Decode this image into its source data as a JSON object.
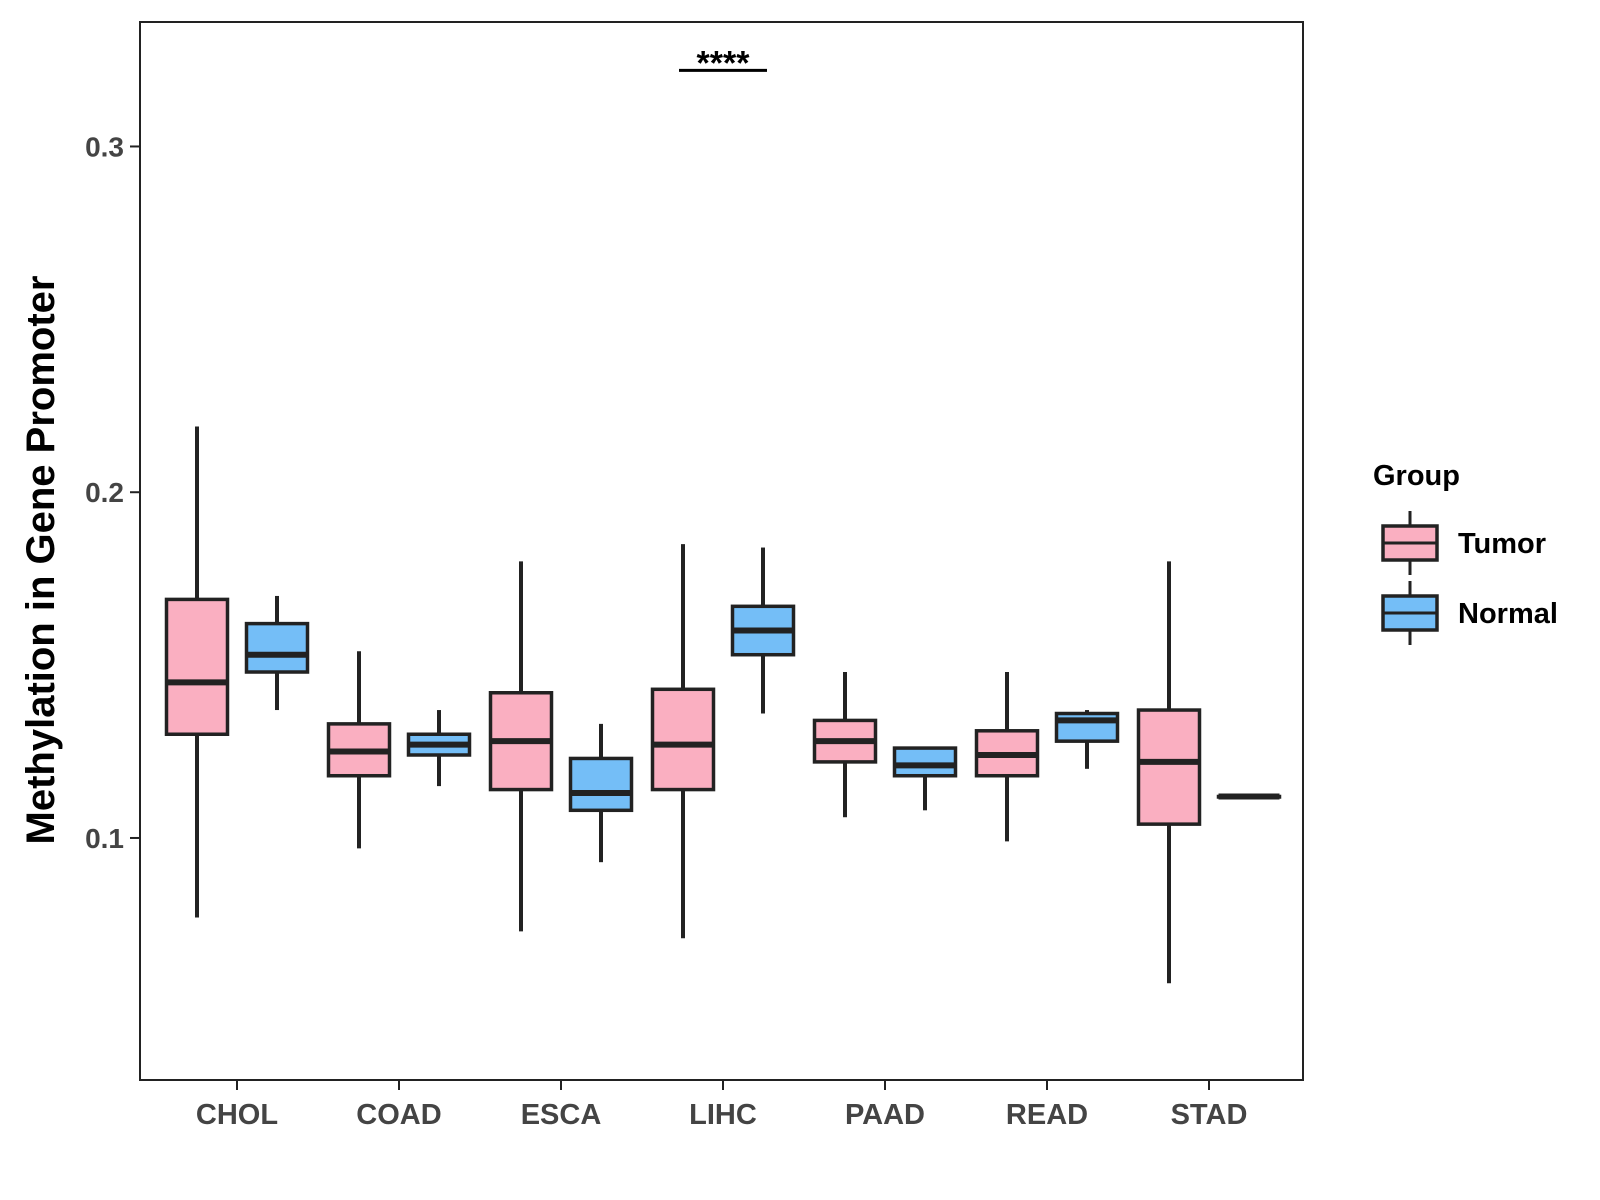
{
  "chart_data": {
    "type": "box",
    "title": "",
    "xlabel": "",
    "ylabel": "Methylation in Gene Promoter",
    "ylim": [
      0.03,
      0.336
    ],
    "yticks": [
      0.1,
      0.2,
      0.3
    ],
    "ytick_labels": [
      "0.1",
      "0.2",
      "0.3"
    ],
    "grid": false,
    "categories": [
      "CHOL",
      "COAD",
      "ESCA",
      "LIHC",
      "PAAD",
      "READ",
      "STAD"
    ],
    "legend": {
      "title": "Group",
      "position": "right",
      "entries": [
        "Tumor",
        "Normal"
      ]
    },
    "colors": {
      "Tumor": "#FAAFC1",
      "Normal": "#74BEF7",
      "edge": "#222222"
    },
    "series": [
      {
        "name": "Tumor",
        "boxes": [
          {
            "category": "CHOL",
            "min": 0.077,
            "q1": 0.13,
            "median": 0.145,
            "q3": 0.169,
            "max": 0.219
          },
          {
            "category": "COAD",
            "min": 0.097,
            "q1": 0.118,
            "median": 0.125,
            "q3": 0.133,
            "max": 0.154
          },
          {
            "category": "ESCA",
            "min": 0.073,
            "q1": 0.114,
            "median": 0.128,
            "q3": 0.142,
            "max": 0.18
          },
          {
            "category": "LIHC",
            "min": 0.071,
            "q1": 0.114,
            "median": 0.127,
            "q3": 0.143,
            "max": 0.185
          },
          {
            "category": "PAAD",
            "min": 0.106,
            "q1": 0.122,
            "median": 0.128,
            "q3": 0.134,
            "max": 0.148
          },
          {
            "category": "READ",
            "min": 0.099,
            "q1": 0.118,
            "median": 0.124,
            "q3": 0.131,
            "max": 0.148
          },
          {
            "category": "STAD",
            "min": 0.058,
            "q1": 0.104,
            "median": 0.122,
            "q3": 0.137,
            "max": 0.18
          }
        ]
      },
      {
        "name": "Normal",
        "boxes": [
          {
            "category": "CHOL",
            "min": 0.137,
            "q1": 0.148,
            "median": 0.153,
            "q3": 0.162,
            "max": 0.17
          },
          {
            "category": "COAD",
            "min": 0.115,
            "q1": 0.124,
            "median": 0.127,
            "q3": 0.13,
            "max": 0.137
          },
          {
            "category": "ESCA",
            "min": 0.093,
            "q1": 0.108,
            "median": 0.113,
            "q3": 0.123,
            "max": 0.133
          },
          {
            "category": "LIHC",
            "min": 0.136,
            "q1": 0.153,
            "median": 0.16,
            "q3": 0.167,
            "max": 0.184
          },
          {
            "category": "PAAD",
            "min": 0.108,
            "q1": 0.118,
            "median": 0.121,
            "q3": 0.126,
            "max": 0.126
          },
          {
            "category": "READ",
            "min": 0.12,
            "q1": 0.128,
            "median": 0.134,
            "q3": 0.136,
            "max": 0.137
          },
          {
            "category": "STAD",
            "min": 0.112,
            "q1": 0.112,
            "median": 0.112,
            "q3": 0.112,
            "max": 0.112
          }
        ]
      }
    ],
    "annotations": [
      {
        "category": "LIHC",
        "text": "****",
        "y": 0.322
      }
    ]
  }
}
